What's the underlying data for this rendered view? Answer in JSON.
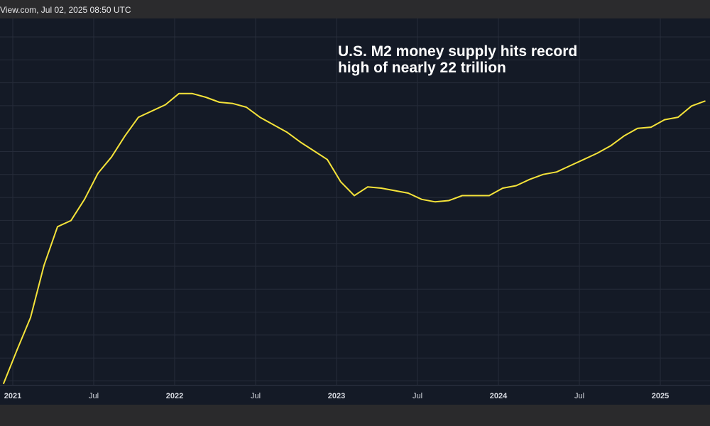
{
  "header": {
    "source_text": "View.com, Jul 02, 2025 08:50 UTC"
  },
  "annotation": {
    "line1": "U.S. M2 money supply hits record",
    "line2": "high of nearly 22 trillion"
  },
  "colors": {
    "background": "#141a26",
    "grid": "#262c3a",
    "line": "#f5e33a",
    "text": "#d8dbe2"
  },
  "chart_data": {
    "type": "line",
    "title": "",
    "xlabel": "",
    "ylabel": "",
    "grid": true,
    "x_ticks": [
      {
        "label": "2021",
        "date": "2021-01",
        "bold": true
      },
      {
        "label": "Jul",
        "date": "2021-07",
        "bold": false
      },
      {
        "label": "2022",
        "date": "2022-01",
        "bold": true
      },
      {
        "label": "Jul",
        "date": "2022-07",
        "bold": false
      },
      {
        "label": "2023",
        "date": "2023-01",
        "bold": true
      },
      {
        "label": "Jul",
        "date": "2023-07",
        "bold": false
      },
      {
        "label": "2024",
        "date": "2024-01",
        "bold": true
      },
      {
        "label": "Jul",
        "date": "2024-07",
        "bold": false
      },
      {
        "label": "2025",
        "date": "2025-01",
        "bold": true
      }
    ],
    "series": [
      {
        "x": [
          "2021-01",
          "2021-02",
          "2021-03",
          "2021-04",
          "2021-05",
          "2021-06",
          "2021-07",
          "2021-08",
          "2021-09",
          "2021-10",
          "2021-11",
          "2021-12",
          "2022-01",
          "2022-02",
          "2022-03",
          "2022-04",
          "2022-05",
          "2022-06",
          "2022-07",
          "2022-08",
          "2022-09",
          "2022-10",
          "2022-11",
          "2022-12",
          "2023-01",
          "2023-02",
          "2023-03",
          "2023-04",
          "2023-05",
          "2023-06",
          "2023-07",
          "2023-08",
          "2023-09",
          "2023-10",
          "2023-11",
          "2023-12",
          "2024-01",
          "2024-02",
          "2024-03",
          "2024-04",
          "2024-05",
          "2024-06",
          "2024-07",
          "2024-08",
          "2024-09",
          "2024-10",
          "2024-11",
          "2024-12",
          "2025-01",
          "2025-02",
          "2025-03",
          "2025-04",
          "2025-05"
        ],
        "values": [
          19.41,
          19.68,
          19.94,
          20.36,
          20.67,
          20.72,
          20.89,
          21.1,
          21.23,
          21.4,
          21.55,
          21.6,
          21.65,
          21.74,
          21.74,
          21.71,
          21.67,
          21.66,
          21.63,
          21.55,
          21.49,
          21.43,
          21.35,
          21.28,
          21.21,
          21.03,
          20.92,
          20.99,
          20.98,
          20.96,
          20.94,
          20.89,
          20.87,
          20.88,
          20.92,
          20.92,
          20.92,
          20.98,
          21.0,
          21.05,
          21.09,
          21.11,
          21.16,
          21.21,
          21.26,
          21.32,
          21.4,
          21.46,
          21.47,
          21.53,
          21.55,
          21.64,
          21.68
        ]
      }
    ]
  }
}
